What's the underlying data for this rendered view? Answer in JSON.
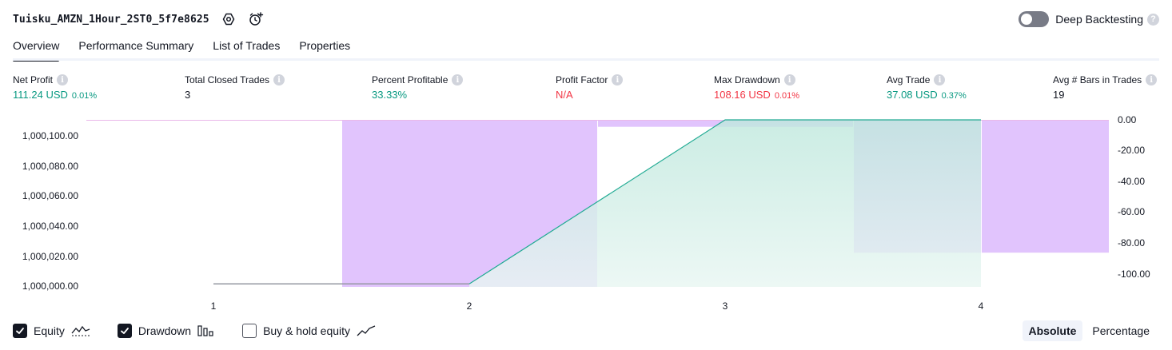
{
  "header": {
    "title": "Tuisku_AMZN_1Hour_2ST0_5f7e8625",
    "settings_icon": "settings-icon",
    "alert_icon": "add-alert-icon"
  },
  "deep_backtesting": {
    "label": "Deep Backtesting",
    "enabled": false,
    "help": "?"
  },
  "tabs": [
    {
      "label": "Overview",
      "active": true
    },
    {
      "label": "Performance Summary",
      "active": false
    },
    {
      "label": "List of Trades",
      "active": false
    },
    {
      "label": "Properties",
      "active": false
    }
  ],
  "metrics": {
    "info_glyph": "i",
    "net_profit": {
      "label": "Net Profit",
      "value": "111.24 USD",
      "pct": "0.01%"
    },
    "total_closed_trades": {
      "label": "Total Closed Trades",
      "value": "3"
    },
    "percent_profitable": {
      "label": "Percent Profitable",
      "value": "33.33%"
    },
    "profit_factor": {
      "label": "Profit Factor",
      "value": "N/A"
    },
    "max_drawdown": {
      "label": "Max Drawdown",
      "value": "108.16 USD",
      "pct": "0.01%"
    },
    "avg_trade": {
      "label": "Avg Trade",
      "value": "37.08 USD",
      "pct": "0.37%"
    },
    "avg_bars": {
      "label": "Avg # Bars in Trades",
      "value": "19"
    }
  },
  "colors": {
    "green": "#089981",
    "red": "#f23645",
    "drawdown_fill": "#e1c4fd",
    "equity_line": "#22ab94",
    "equity_fill": "#c8ebe3"
  },
  "chart_data": {
    "type": "area",
    "x": [
      1,
      2,
      3,
      4
    ],
    "x_ticks": [
      "1",
      "2",
      "3",
      "4"
    ],
    "equity": {
      "values": [
        1000000.0,
        1000000.0,
        1000111.0,
        1000111.0
      ],
      "y_ticks": [
        "1,000,100.00",
        "1,000,080.00",
        "1,000,060.00",
        "1,000,040.00",
        "1,000,020.00",
        "1,000,000.00"
      ],
      "ylim": [
        999998,
        1000111
      ]
    },
    "drawdown": {
      "bars": [
        {
          "x": 1.5,
          "value": -108.16
        },
        {
          "x": 2.5,
          "value": -4.5
        },
        {
          "x": 3.5,
          "value": -86.0
        },
        {
          "x": 4.5,
          "value": -86.0
        }
      ],
      "y_ticks": [
        "0.00",
        "-20.00",
        "-40.00",
        "-60.00",
        "-80.00",
        "-100.00"
      ],
      "ylim": [
        -108.16,
        0
      ]
    },
    "grid": false
  },
  "legend": {
    "equity": {
      "label": "Equity",
      "checked": true,
      "icon": "equity-line-icon"
    },
    "drawdown": {
      "label": "Drawdown",
      "checked": true,
      "icon": "drawdown-bars-icon"
    },
    "buy_hold": {
      "label": "Buy & hold equity",
      "checked": false,
      "icon": "buy-hold-line-icon"
    }
  },
  "modes": [
    {
      "label": "Absolute",
      "active": true
    },
    {
      "label": "Percentage",
      "active": false
    }
  ]
}
